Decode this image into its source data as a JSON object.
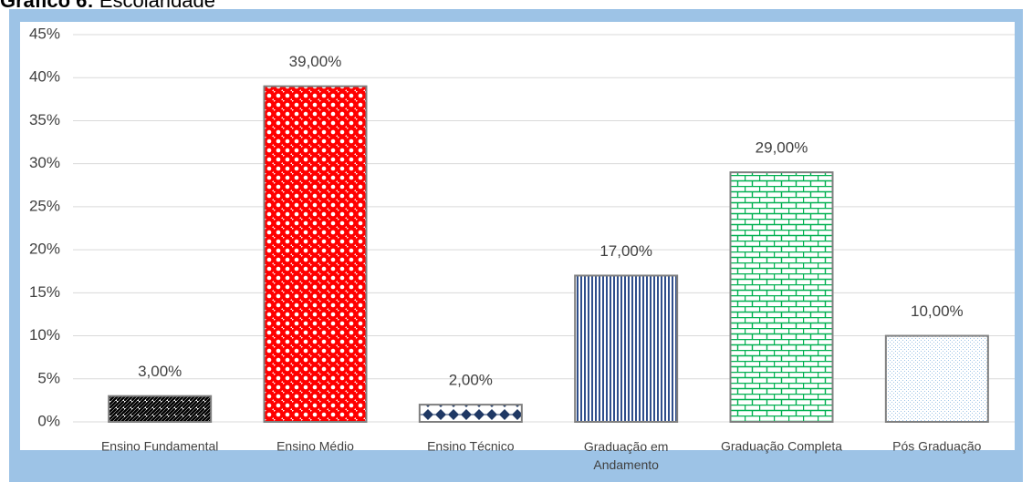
{
  "chart_data": {
    "type": "bar",
    "title_label": "Gráfico 6:",
    "title": "Escolaridade",
    "categories": [
      "Ensino Fundamental",
      "Ensino Médio",
      "Ensino Técnico",
      "Graduação em Andamento",
      "Graduação Completa",
      "Pós Graduação"
    ],
    "values": [
      3,
      39,
      2,
      17,
      29,
      10
    ],
    "value_labels": [
      "3,00%",
      "39,00%",
      "2,00%",
      "17,00%",
      "29,00%",
      "10,00%"
    ],
    "colors": [
      "#000000",
      "#ff0000",
      "#1f3864",
      "#2f4e8c",
      "#00b050",
      "#9dc3e6"
    ],
    "ylim": [
      0,
      45
    ],
    "yticks": [
      {
        "value": 0,
        "label": "0%"
      },
      {
        "value": 5,
        "label": "5%"
      },
      {
        "value": 10,
        "label": "10%"
      },
      {
        "value": 15,
        "label": "15%"
      },
      {
        "value": 20,
        "label": "20%"
      },
      {
        "value": 25,
        "label": "25%"
      },
      {
        "value": 30,
        "label": "30%"
      },
      {
        "value": 35,
        "label": "35%"
      },
      {
        "value": 40,
        "label": "40%"
      },
      {
        "value": 45,
        "label": "45%"
      }
    ],
    "grid": true
  }
}
